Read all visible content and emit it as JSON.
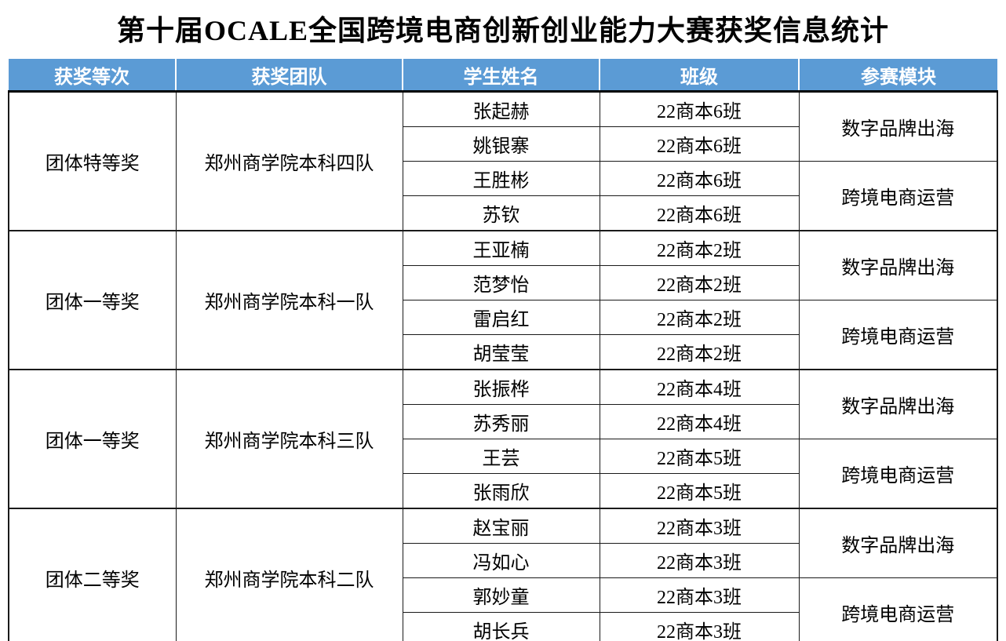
{
  "title": "第十届OCALE全国跨境电商创新创业能力大赛获奖信息统计",
  "colors": {
    "header_bg": "#5B9BD5",
    "header_text": "#ffffff",
    "border": "#000000"
  },
  "table": {
    "headers": [
      "获奖等次",
      "获奖团队",
      "学生姓名",
      "班级",
      "参赛模块"
    ],
    "sections": [
      {
        "award": "团体特等奖",
        "team": "郑州商学院本科四队",
        "students": [
          {
            "name": "张起赫",
            "class": "22商本6班"
          },
          {
            "name": "姚银寨",
            "class": "22商本6班"
          },
          {
            "name": "王胜彬",
            "class": "22商本6班"
          },
          {
            "name": "苏钦",
            "class": "22商本6班"
          }
        ],
        "modules": [
          "数字品牌出海",
          "跨境电商运营"
        ]
      },
      {
        "award": "团体一等奖",
        "team": "郑州商学院本科一队",
        "students": [
          {
            "name": "王亚楠",
            "class": "22商本2班"
          },
          {
            "name": "范梦怡",
            "class": "22商本2班"
          },
          {
            "name": "雷启红",
            "class": "22商本2班"
          },
          {
            "name": "胡莹莹",
            "class": "22商本2班"
          }
        ],
        "modules": [
          "数字品牌出海",
          "跨境电商运营"
        ]
      },
      {
        "award": "团体一等奖",
        "team": "郑州商学院本科三队",
        "students": [
          {
            "name": "张振桦",
            "class": "22商本4班"
          },
          {
            "name": "苏秀丽",
            "class": "22商本4班"
          },
          {
            "name": "王芸",
            "class": "22商本5班"
          },
          {
            "name": "张雨欣",
            "class": "22商本5班"
          }
        ],
        "modules": [
          "数字品牌出海",
          "跨境电商运营"
        ]
      },
      {
        "award": "团体二等奖",
        "team": "郑州商学院本科二队",
        "students": [
          {
            "name": "赵宝丽",
            "class": "22商本3班"
          },
          {
            "name": "冯如心",
            "class": "22商本3班"
          },
          {
            "name": "郭妙童",
            "class": "22商本3班"
          },
          {
            "name": "胡长兵",
            "class": "22商本3班"
          }
        ],
        "modules": [
          "数字品牌出海",
          "跨境电商运营"
        ]
      }
    ]
  }
}
